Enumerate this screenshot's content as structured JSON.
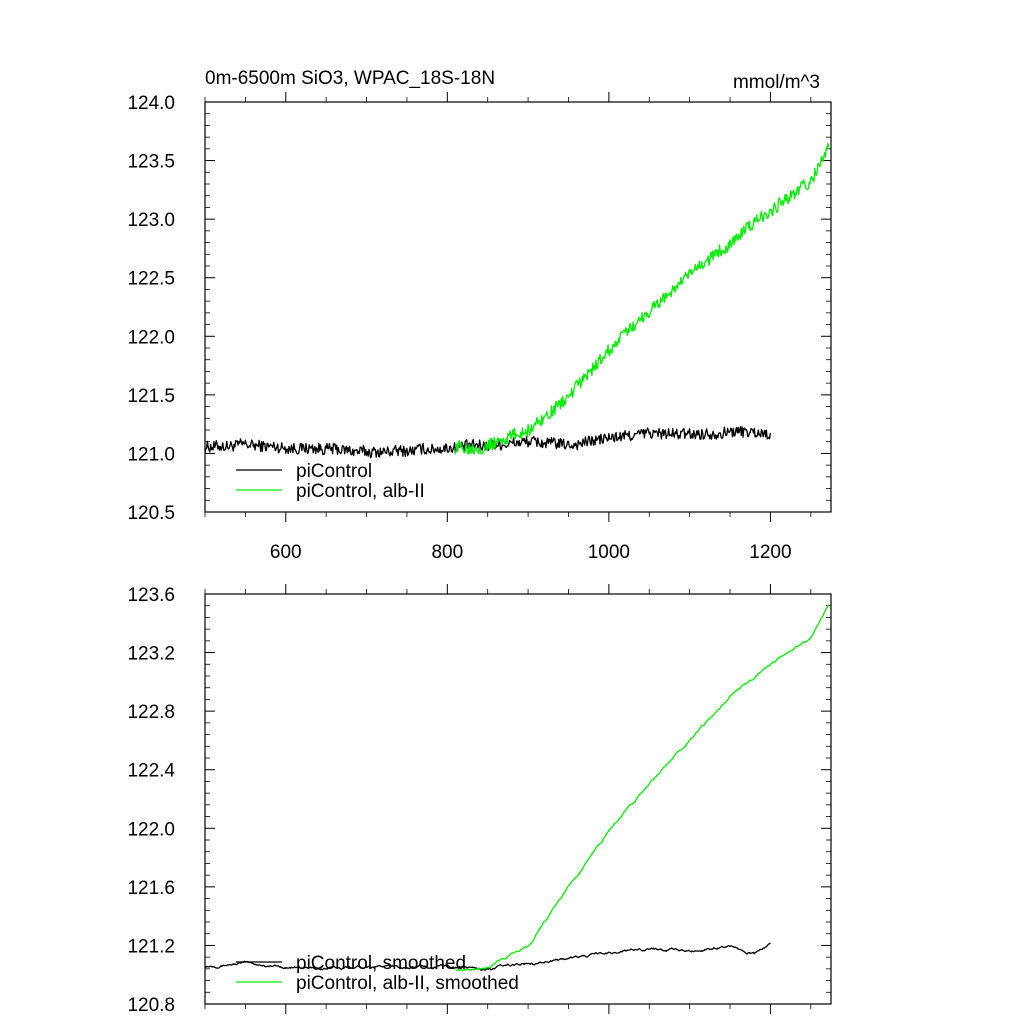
{
  "chart_data": [
    {
      "type": "line",
      "title": "0m-6500m SiO3, WPAC_18S-18N",
      "units": "mmol/m^3",
      "xlim": [
        500,
        1275
      ],
      "ylim": [
        120.5,
        124.0
      ],
      "x_ticks": [
        600,
        800,
        1000,
        1200
      ],
      "y_ticks": [
        120.5,
        121.0,
        121.5,
        122.0,
        122.5,
        123.0,
        123.5,
        124.0
      ],
      "y_tick_labels": [
        "120.5",
        "121.0",
        "121.5",
        "122.0",
        "122.5",
        "123.0",
        "123.5",
        "124.0"
      ],
      "x_tick_labels": [
        "600",
        "800",
        "1000",
        "1200"
      ],
      "legend_position": "lower-left",
      "series": [
        {
          "name": "piControl",
          "color": "#000000",
          "x": [
            500,
            550,
            600,
            650,
            700,
            750,
            800,
            850,
            900,
            950,
            1000,
            1050,
            1100,
            1150,
            1200
          ],
          "values": [
            121.06,
            121.07,
            121.05,
            121.04,
            121.01,
            121.02,
            121.05,
            121.07,
            121.1,
            121.07,
            121.13,
            121.17,
            121.16,
            121.19,
            121.17
          ],
          "noise": 0.045
        },
        {
          "name": "piControl, alb-II",
          "color": "#00ee00",
          "x": [
            810,
            850,
            900,
            950,
            1000,
            1050,
            1100,
            1150,
            1200,
            1250,
            1272
          ],
          "values": [
            121.05,
            121.07,
            121.2,
            121.48,
            121.88,
            122.22,
            122.52,
            122.8,
            123.08,
            123.32,
            123.62
          ],
          "noise": 0.05
        }
      ]
    },
    {
      "type": "line",
      "title": "",
      "xlim": [
        500,
        1275
      ],
      "ylim": [
        120.8,
        123.6
      ],
      "x_ticks": [
        600,
        800,
        1000,
        1200
      ],
      "y_ticks": [
        120.8,
        121.2,
        121.6,
        122.0,
        122.4,
        122.8,
        123.2,
        123.6
      ],
      "y_tick_labels": [
        "120.8",
        "121.2",
        "121.6",
        "122.0",
        "122.4",
        "122.8",
        "123.2",
        "123.6"
      ],
      "legend_position": "lower-left",
      "series": [
        {
          "name": "piControl, smoothed",
          "color": "#000000",
          "x": [
            500,
            550,
            600,
            650,
            700,
            750,
            800,
            850,
            900,
            950,
            1000,
            1050,
            1100,
            1150,
            1180,
            1200
          ],
          "values": [
            121.06,
            121.08,
            121.05,
            121.04,
            121.06,
            121.05,
            121.06,
            121.04,
            121.08,
            121.11,
            121.15,
            121.18,
            121.16,
            121.2,
            121.14,
            121.21
          ],
          "noise": 0.015
        },
        {
          "name": "piControl, alb-II, smoothed",
          "color": "#00ee00",
          "x": [
            810,
            850,
            900,
            950,
            1000,
            1050,
            1100,
            1150,
            1200,
            1250,
            1272
          ],
          "values": [
            121.04,
            121.05,
            121.2,
            121.6,
            121.98,
            122.3,
            122.6,
            122.9,
            123.12,
            123.3,
            123.52
          ],
          "noise": 0.015
        }
      ]
    }
  ]
}
